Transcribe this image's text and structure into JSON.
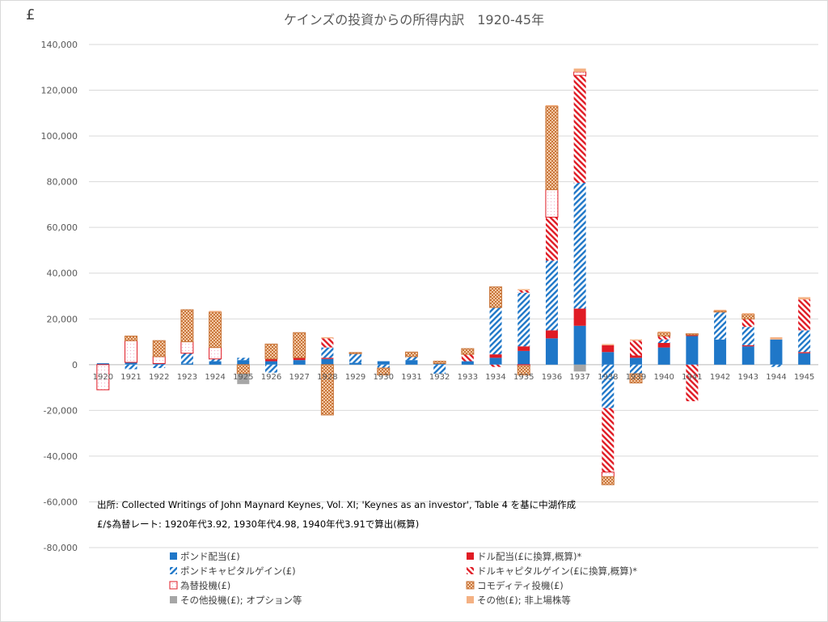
{
  "chart_data": {
    "type": "bar",
    "stacked": true,
    "title": "ケインズの投資からの所得内訳　1920-45年",
    "unit_label": "£",
    "xlabel": "",
    "ylabel": "",
    "ylim": [
      -80000,
      140000
    ],
    "ytick_step": 20000,
    "ytick_labels": [
      "-80,000",
      "-60,000",
      "-40,000",
      "-20,000",
      "0",
      "20,000",
      "40,000",
      "60,000",
      "80,000",
      "100,000",
      "120,000",
      "140,000"
    ],
    "grid": true,
    "legend_position": "bottom",
    "categories": [
      "1920",
      "1921",
      "1922",
      "1923",
      "1924",
      "1925",
      "1926",
      "1927",
      "1928",
      "1929",
      "1930",
      "1931",
      "1932",
      "1933",
      "1934",
      "1935",
      "1936",
      "1937",
      "1938",
      "1939",
      "1940",
      "1941",
      "1942",
      "1943",
      "1944",
      "1945"
    ],
    "series": [
      {
        "name": "ポンド配当(£)",
        "pattern": "solid-blue",
        "values": [
          600,
          1000,
          500,
          500,
          1500,
          2000,
          1500,
          2000,
          2500,
          800,
          1500,
          2000,
          500,
          1500,
          3000,
          6000,
          11500,
          17000,
          5500,
          3000,
          7500,
          12500,
          11000,
          8000,
          11000,
          5000
        ]
      },
      {
        "name": "ドル配当(£に換算,概算)*",
        "pattern": "solid-red",
        "values": [
          0,
          0,
          0,
          0,
          0,
          0,
          1000,
          1000,
          500,
          0,
          0,
          0,
          0,
          0,
          1500,
          2000,
          3500,
          7500,
          3000,
          1000,
          2000,
          500,
          0,
          500,
          0,
          500
        ]
      },
      {
        "name": "ポンドキャピタルゲイン(£)",
        "pattern": "blue-hatch",
        "values": [
          0,
          -2000,
          -1500,
          4500,
          1000,
          1000,
          -3500,
          0,
          4500,
          4000,
          -1500,
          1500,
          -4000,
          0,
          20500,
          23500,
          30500,
          55000,
          -19000,
          -4000,
          1500,
          0,
          12000,
          8000,
          -1000,
          9500
        ]
      },
      {
        "name": "ドルキャピタルゲイン(£に換算,概算)*",
        "pattern": "red-hatch",
        "values": [
          0,
          0,
          0,
          0,
          0,
          0,
          0,
          0,
          4000,
          0,
          0,
          0,
          0,
          3000,
          -1000,
          1000,
          19000,
          47000,
          -28000,
          6500,
          1500,
          -16000,
          0,
          3500,
          0,
          13500
        ]
      },
      {
        "name": "為替投機(£)",
        "pattern": "red-outline",
        "values": [
          -11000,
          9500,
          3000,
          5000,
          5000,
          0,
          0,
          0,
          0,
          0,
          0,
          0,
          0,
          0,
          0,
          -500,
          12000,
          1500,
          -2000,
          0,
          0,
          0,
          0,
          0,
          0,
          0
        ]
      },
      {
        "name": "コモディティ投機(£)",
        "pattern": "orange-check",
        "values": [
          0,
          2000,
          7000,
          14000,
          15500,
          -4000,
          6500,
          11000,
          -22000,
          500,
          -3000,
          2000,
          1000,
          2500,
          9000,
          -4000,
          36500,
          0,
          -3500,
          -4000,
          1500,
          500,
          500,
          2000,
          0,
          0
        ]
      },
      {
        "name": "その他投機(£); オプション等",
        "pattern": "solid-gray",
        "values": [
          0,
          0,
          0,
          0,
          0,
          -4500,
          0,
          0,
          0,
          0,
          0,
          0,
          0,
          0,
          0,
          0,
          0,
          -3000,
          0,
          0,
          0,
          0,
          0,
          0,
          0,
          0
        ]
      },
      {
        "name": "その他(£); 非上場株等",
        "pattern": "solid-tan",
        "values": [
          0,
          0,
          0,
          0,
          500,
          0,
          0,
          0,
          500,
          0,
          0,
          0,
          0,
          0,
          0,
          500,
          500,
          1500,
          500,
          500,
          500,
          0,
          500,
          500,
          1000,
          1000
        ]
      }
    ],
    "annotations": [
      "出所: Collected Writings of John Maynard Keynes, Vol. XI; 'Keynes as an investor', Table 4 を基に中湖作成",
      "£/$為替レート: 1920年代3.92, 1930年代4.98, 1940年代3.91で算出(概算)"
    ]
  }
}
